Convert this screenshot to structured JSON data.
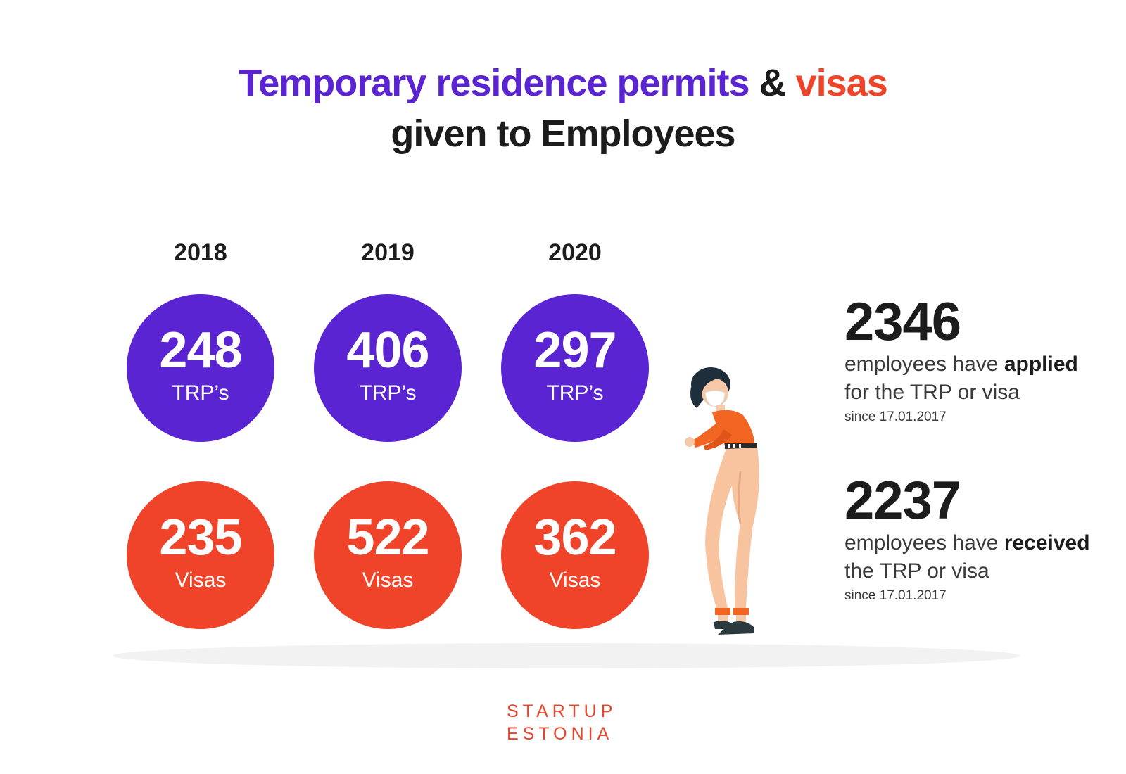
{
  "title": {
    "part1": "Temporary residence permits",
    "connector": "&",
    "part2": "visas",
    "line2": "given to Employees"
  },
  "colors": {
    "purple": "#5a24d2",
    "red": "#f0442a",
    "dark": "#1c1c1c",
    "logo": "#e8452f"
  },
  "years": [
    {
      "year": "2018",
      "trp": "248",
      "trp_label": "TRP’s",
      "visa": "235",
      "visa_label": "Visas"
    },
    {
      "year": "2019",
      "trp": "406",
      "trp_label": "TRP’s",
      "visa": "522",
      "visa_label": "Visas"
    },
    {
      "year": "2020",
      "trp": "297",
      "trp_label": "TRP’s",
      "visa": "362",
      "visa_label": "Visas"
    }
  ],
  "stats": [
    {
      "number": "2346",
      "pre": "employees have",
      "bold": "applied",
      "line2": "for the TRP or visa",
      "since": "since 17.01.2017"
    },
    {
      "number": "2237",
      "pre": "employees have",
      "bold": "received",
      "line2": "the TRP or visa",
      "since": "since 17.01.2017"
    }
  ],
  "logo": {
    "line1": "STARTUP",
    "line2": "ESTONIA"
  },
  "illustration": {
    "icon": "woman-wearing-mask-illustration"
  }
}
